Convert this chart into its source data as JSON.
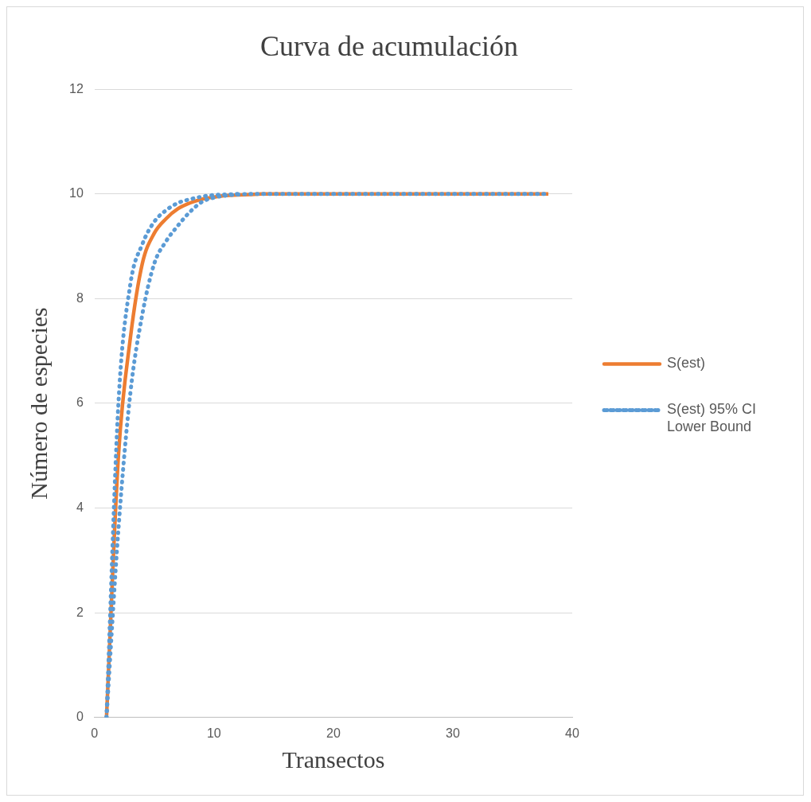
{
  "chart_data": {
    "type": "line",
    "title": "Curva de acumulación",
    "xlabel": "Transectos",
    "ylabel": "Número de especies",
    "x": [
      1,
      2,
      3,
      4,
      5,
      6,
      7,
      8,
      9,
      10,
      11,
      12,
      13,
      14,
      15,
      16,
      17,
      18,
      19,
      20,
      21,
      22,
      23,
      24,
      25,
      26,
      27,
      28,
      29,
      30,
      31,
      32,
      33,
      34,
      35,
      36,
      37,
      38
    ],
    "series": [
      {
        "name": "S(est)",
        "color": "#ed7d31",
        "line_style": "solid",
        "values": [
          0,
          5.0,
          7.25,
          8.67,
          9.25,
          9.53,
          9.72,
          9.83,
          9.9,
          9.94,
          9.97,
          9.98,
          9.99,
          10,
          10,
          10,
          10,
          10,
          10,
          10,
          10,
          10,
          10,
          10,
          10,
          10,
          10,
          10,
          10,
          10,
          10,
          10,
          10,
          10,
          10,
          10,
          10,
          10
        ]
      },
      {
        "name": "S(est) 95% CI Lower Bound",
        "color": "#5b9bd5",
        "line_style": "dotted",
        "values": [
          0,
          3.6,
          6.2,
          7.7,
          8.67,
          9.1,
          9.4,
          9.66,
          9.85,
          9.93,
          9.97,
          9.99,
          10,
          10,
          10,
          10,
          10,
          10,
          10,
          10,
          10,
          10,
          10,
          10,
          10,
          10,
          10,
          10,
          10,
          10,
          10,
          10,
          10,
          10,
          10,
          10,
          10,
          10
        ]
      },
      {
        "color": "#5b9bd5",
        "line_style": "dotted",
        "values": [
          0,
          6.0,
          8.28,
          9.04,
          9.47,
          9.69,
          9.83,
          9.9,
          9.95,
          9.98,
          9.99,
          10,
          null,
          null,
          null,
          null,
          null,
          null,
          null,
          null,
          null,
          null,
          null,
          null,
          null,
          null,
          null,
          null,
          null,
          null,
          null,
          null,
          null,
          null,
          null,
          null,
          null,
          null
        ]
      }
    ],
    "xlim": [
      0,
      40
    ],
    "xticks": [
      0,
      10,
      20,
      30,
      40
    ],
    "ylim": [
      0,
      12
    ],
    "yticks": [
      0,
      2,
      4,
      6,
      8,
      10,
      12
    ],
    "grid": "y",
    "legend": "right",
    "marker": "none"
  }
}
